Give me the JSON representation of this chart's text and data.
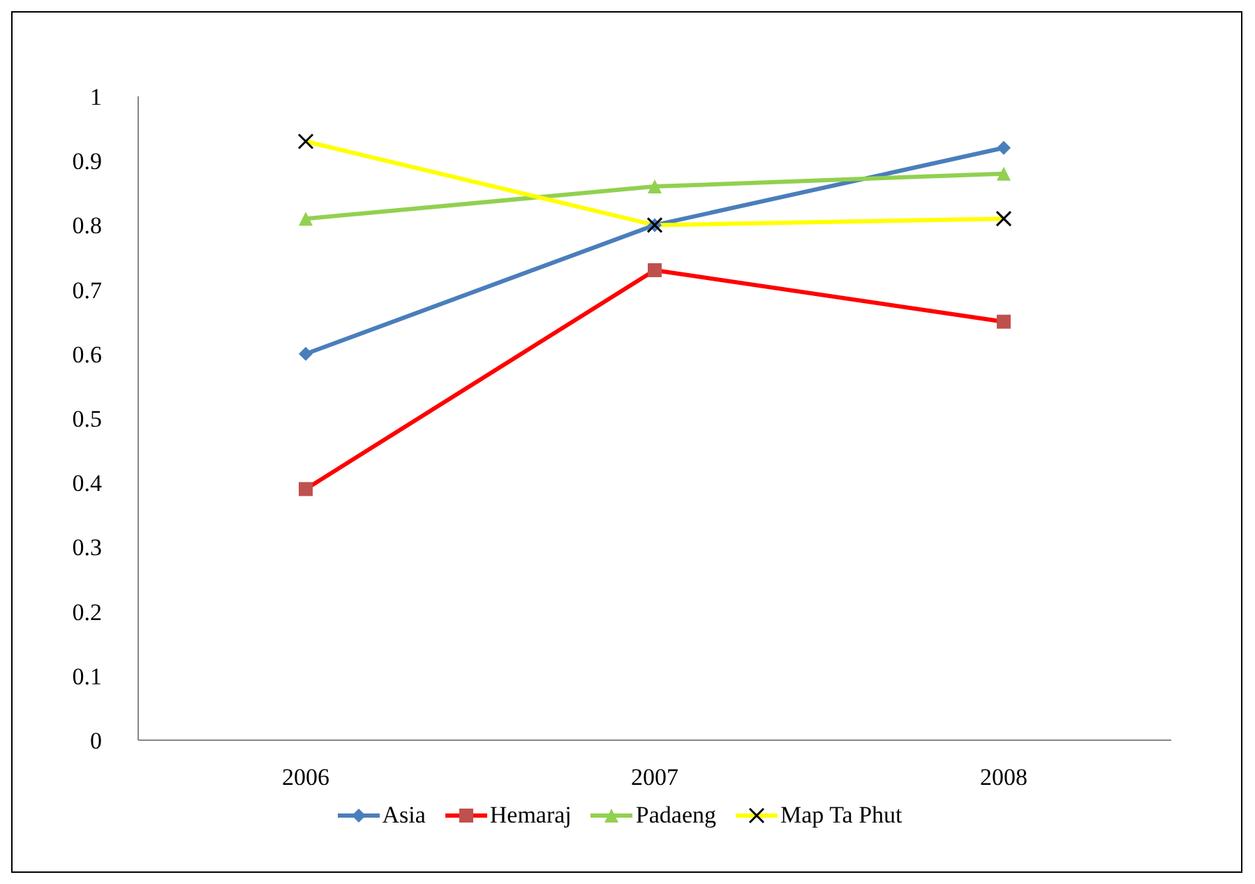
{
  "chart_data": {
    "type": "line",
    "categories": [
      "2006",
      "2007",
      "2008"
    ],
    "series": [
      {
        "name": "Asia",
        "color": "#4a7ebb",
        "marker": "diamond",
        "values": [
          0.6,
          0.8,
          0.92
        ]
      },
      {
        "name": "Hemaraj",
        "color": "#ff0000",
        "marker": "square",
        "values": [
          0.39,
          0.73,
          0.65
        ]
      },
      {
        "name": "Padaeng",
        "color": "#92d050",
        "marker": "triangle",
        "values": [
          0.81,
          0.86,
          0.88
        ]
      },
      {
        "name": "Map Ta Phut",
        "color": "#ffff00",
        "marker": "cross",
        "values": [
          0.93,
          0.8,
          0.81
        ]
      }
    ],
    "ylim": [
      0,
      1
    ],
    "yticks": [
      0,
      0.1,
      0.2,
      0.3,
      0.4,
      0.5,
      0.6,
      0.7,
      0.8,
      0.9,
      1
    ],
    "grid": false,
    "legend": "bottom"
  }
}
